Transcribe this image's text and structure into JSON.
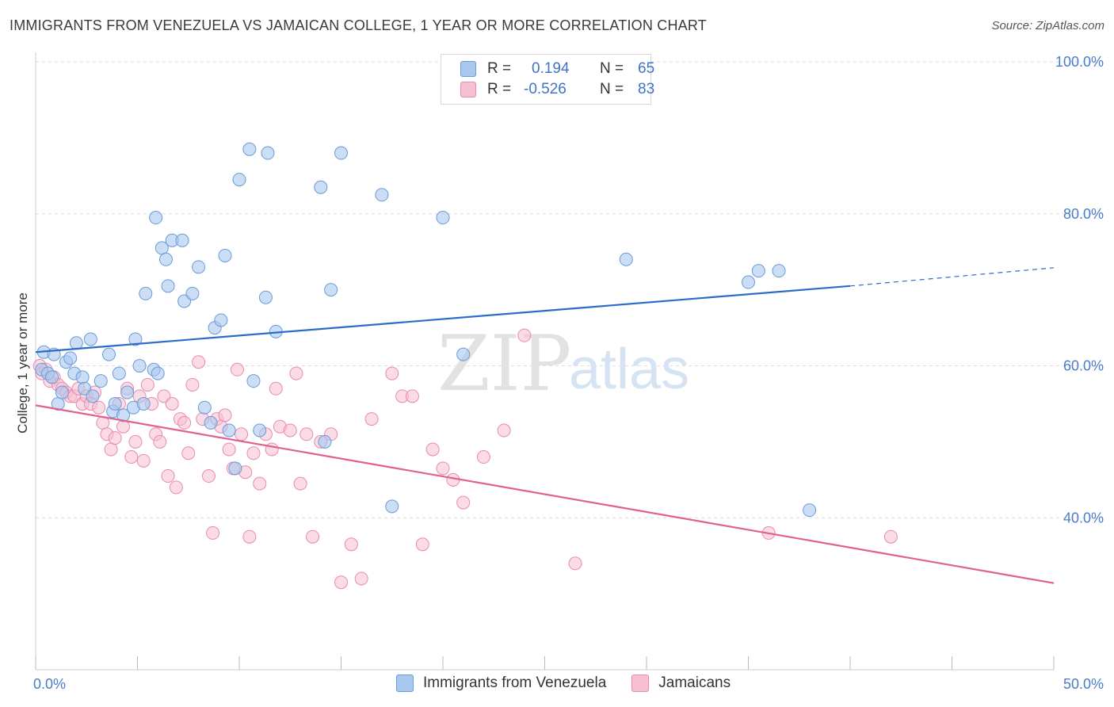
{
  "header": {
    "title": "IMMIGRANTS FROM VENEZUELA VS JAMAICAN COLLEGE, 1 YEAR OR MORE CORRELATION CHART",
    "source": "Source: ZipAtlas.com"
  },
  "legend": {
    "rows": [
      {
        "r_label": "R =",
        "r_value": "0.194",
        "n_label": "N =",
        "n_value": "65"
      },
      {
        "r_label": "R =",
        "r_value": "-0.526",
        "n_label": "N =",
        "n_value": "83"
      }
    ]
  },
  "bottom_legend": {
    "items": [
      "Immigrants from Venezuela",
      "Jamaicans"
    ]
  },
  "colors": {
    "blue_fill": "#a9c8ef",
    "blue_stroke": "#6a9ad8",
    "blue_line": "#2a6cc8",
    "pink_fill": "#f7bfd2",
    "pink_stroke": "#e88aab",
    "pink_line": "#e0608f",
    "tick_label": "#4a7cc9",
    "grid": "#dddddd"
  },
  "watermark": {
    "zip": "ZIP",
    "atlas": "atlas"
  },
  "chart_data": {
    "type": "scatter",
    "title": "IMMIGRANTS FROM VENEZUELA VS JAMAICAN COLLEGE, 1 YEAR OR MORE CORRELATION CHART",
    "xlabel": "",
    "ylabel": "College, 1 year or more",
    "xlim": [
      0,
      50
    ],
    "ylim": [
      20,
      100
    ],
    "x_tick_labels": [
      "0.0%",
      "50.0%"
    ],
    "y_tick_labels": [
      "40.0%",
      "60.0%",
      "80.0%",
      "100.0%"
    ],
    "y_ticks": [
      40,
      60,
      80,
      100
    ],
    "grid": true,
    "series": [
      {
        "name": "Immigrants from Venezuela",
        "points": [
          [
            0.3,
            59.5
          ],
          [
            0.4,
            61.8
          ],
          [
            0.6,
            59.0
          ],
          [
            0.8,
            58.5
          ],
          [
            0.9,
            61.5
          ],
          [
            1.1,
            55.0
          ],
          [
            1.3,
            56.5
          ],
          [
            1.5,
            60.5
          ],
          [
            1.7,
            61.0
          ],
          [
            1.9,
            59.0
          ],
          [
            2.0,
            63.0
          ],
          [
            2.3,
            58.5
          ],
          [
            2.4,
            57.0
          ],
          [
            2.8,
            56.0
          ],
          [
            2.7,
            63.5
          ],
          [
            3.2,
            58.0
          ],
          [
            3.6,
            61.5
          ],
          [
            3.8,
            54.0
          ],
          [
            3.9,
            55.0
          ],
          [
            4.1,
            59.0
          ],
          [
            4.3,
            53.5
          ],
          [
            4.5,
            56.5
          ],
          [
            4.8,
            54.5
          ],
          [
            4.9,
            63.5
          ],
          [
            5.1,
            60.0
          ],
          [
            5.3,
            55.0
          ],
          [
            5.4,
            69.5
          ],
          [
            5.8,
            59.5
          ],
          [
            5.9,
            79.5
          ],
          [
            6.0,
            59.0
          ],
          [
            6.2,
            75.5
          ],
          [
            6.4,
            74.0
          ],
          [
            6.5,
            70.5
          ],
          [
            6.7,
            76.5
          ],
          [
            7.2,
            76.5
          ],
          [
            7.3,
            68.5
          ],
          [
            7.7,
            69.5
          ],
          [
            8.0,
            73.0
          ],
          [
            8.3,
            54.5
          ],
          [
            8.6,
            52.5
          ],
          [
            8.8,
            65.0
          ],
          [
            9.1,
            66.0
          ],
          [
            9.3,
            74.5
          ],
          [
            9.5,
            51.5
          ],
          [
            9.8,
            46.5
          ],
          [
            10.0,
            84.5
          ],
          [
            10.5,
            88.5
          ],
          [
            10.7,
            58.0
          ],
          [
            11.0,
            51.5
          ],
          [
            11.3,
            69.0
          ],
          [
            11.4,
            88.0
          ],
          [
            11.8,
            64.5
          ],
          [
            14.0,
            83.5
          ],
          [
            14.2,
            50.0
          ],
          [
            14.5,
            70.0
          ],
          [
            15.0,
            88.0
          ],
          [
            17.0,
            82.5
          ],
          [
            17.5,
            41.5
          ],
          [
            20.0,
            79.5
          ],
          [
            21.0,
            61.5
          ],
          [
            29.0,
            74.0
          ],
          [
            35.0,
            71.0
          ],
          [
            35.5,
            72.5
          ],
          [
            36.5,
            72.5
          ],
          [
            38.0,
            41.0
          ]
        ]
      },
      {
        "name": "Jamaicans",
        "points": [
          [
            0.2,
            60.0
          ],
          [
            0.3,
            59.0
          ],
          [
            0.5,
            59.5
          ],
          [
            0.7,
            58.0
          ],
          [
            0.9,
            58.5
          ],
          [
            1.1,
            57.5
          ],
          [
            1.3,
            57.0
          ],
          [
            1.5,
            56.5
          ],
          [
            1.7,
            56.0
          ],
          [
            1.9,
            56.0
          ],
          [
            2.1,
            57.0
          ],
          [
            2.3,
            55.0
          ],
          [
            2.5,
            56.0
          ],
          [
            2.7,
            55.0
          ],
          [
            2.9,
            56.5
          ],
          [
            3.1,
            54.5
          ],
          [
            3.3,
            52.5
          ],
          [
            3.5,
            51.0
          ],
          [
            3.7,
            49.0
          ],
          [
            3.9,
            50.5
          ],
          [
            4.1,
            55.0
          ],
          [
            4.3,
            52.0
          ],
          [
            4.5,
            57.0
          ],
          [
            4.7,
            48.0
          ],
          [
            4.9,
            50.0
          ],
          [
            5.1,
            56.0
          ],
          [
            5.3,
            47.5
          ],
          [
            5.5,
            57.5
          ],
          [
            5.7,
            55.0
          ],
          [
            5.9,
            51.0
          ],
          [
            6.1,
            50.0
          ],
          [
            6.3,
            56.0
          ],
          [
            6.5,
            45.5
          ],
          [
            6.7,
            55.0
          ],
          [
            6.9,
            44.0
          ],
          [
            7.1,
            53.0
          ],
          [
            7.3,
            52.5
          ],
          [
            7.5,
            48.5
          ],
          [
            7.7,
            57.5
          ],
          [
            8.0,
            60.5
          ],
          [
            8.2,
            53.0
          ],
          [
            8.5,
            45.5
          ],
          [
            8.7,
            38.0
          ],
          [
            8.9,
            53.0
          ],
          [
            9.1,
            52.0
          ],
          [
            9.3,
            53.5
          ],
          [
            9.5,
            49.0
          ],
          [
            9.7,
            46.5
          ],
          [
            9.9,
            59.5
          ],
          [
            10.1,
            51.0
          ],
          [
            10.3,
            46.0
          ],
          [
            10.5,
            37.5
          ],
          [
            10.7,
            48.5
          ],
          [
            11.0,
            44.5
          ],
          [
            11.3,
            51.0
          ],
          [
            11.6,
            49.0
          ],
          [
            11.8,
            57.0
          ],
          [
            12.0,
            52.0
          ],
          [
            12.5,
            51.5
          ],
          [
            12.8,
            59.0
          ],
          [
            13.0,
            44.5
          ],
          [
            13.3,
            51.0
          ],
          [
            13.6,
            37.5
          ],
          [
            14.0,
            50.0
          ],
          [
            14.5,
            51.0
          ],
          [
            15.0,
            31.5
          ],
          [
            15.5,
            36.5
          ],
          [
            16.0,
            32.0
          ],
          [
            16.5,
            53.0
          ],
          [
            17.5,
            59.0
          ],
          [
            18.0,
            56.0
          ],
          [
            18.5,
            56.0
          ],
          [
            19.0,
            36.5
          ],
          [
            19.5,
            49.0
          ],
          [
            20.0,
            46.5
          ],
          [
            20.5,
            45.0
          ],
          [
            21.0,
            42.0
          ],
          [
            22.0,
            48.0
          ],
          [
            23.0,
            51.5
          ],
          [
            24.0,
            64.0
          ],
          [
            26.5,
            34.0
          ],
          [
            36.0,
            38.0
          ],
          [
            42.0,
            37.5
          ]
        ]
      }
    ],
    "trendlines": [
      {
        "series": "Immigrants from Venezuela",
        "x": [
          0,
          40
        ],
        "y": [
          61.8,
          70.5
        ],
        "dashed_extension": {
          "x": [
            40,
            50
          ],
          "y": [
            70.5,
            72.9
          ]
        }
      },
      {
        "series": "Jamaicans",
        "x": [
          0,
          50
        ],
        "y": [
          54.8,
          31.4
        ]
      }
    ]
  }
}
